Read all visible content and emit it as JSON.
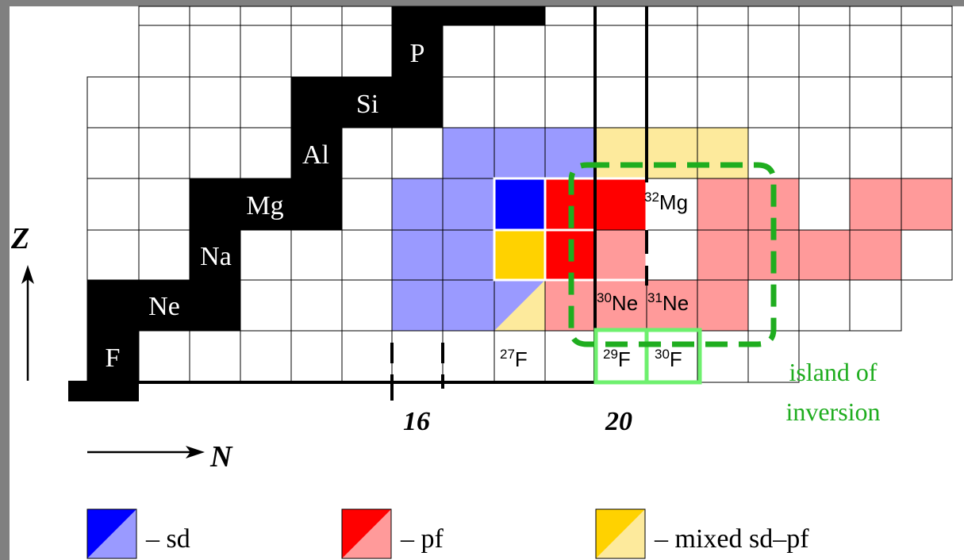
{
  "elements": [
    "F",
    "Ne",
    "Na",
    "Mg",
    "Al",
    "Si",
    "P"
  ],
  "isotopes": [
    {
      "mass": "27",
      "symbol": "F"
    },
    {
      "mass": "29",
      "symbol": "F"
    },
    {
      "mass": "30",
      "symbol": "F"
    },
    {
      "mass": "30",
      "symbol": "Ne"
    },
    {
      "mass": "31",
      "symbol": "Ne"
    },
    {
      "mass": "32",
      "symbol": "Mg"
    }
  ],
  "axes": {
    "x_label": "N",
    "y_label": "Z",
    "magic_numbers": [
      "16",
      "20"
    ]
  },
  "island_label": [
    "island of",
    "inversion"
  ],
  "legend": [
    {
      "label": "– sd",
      "dark": "#0000ff",
      "light": "#9a9aff"
    },
    {
      "label": "– pf",
      "dark": "#ff0000",
      "light": "#ff9a9a"
    },
    {
      "label": "– mixed sd–pf",
      "dark": "#ffd200",
      "light": "#fdea9c"
    }
  ],
  "colors": {
    "sd_dark": "#0000ff",
    "sd_light": "#9a9aff",
    "pf_dark": "#ff0000",
    "pf_light": "#ff9a9a",
    "mixed_dark": "#ffd200",
    "mixed_light": "#fdea9c",
    "island_green": "#1fad1f",
    "isotope_box_green": "#6ef06e",
    "stable": "#000000"
  }
}
